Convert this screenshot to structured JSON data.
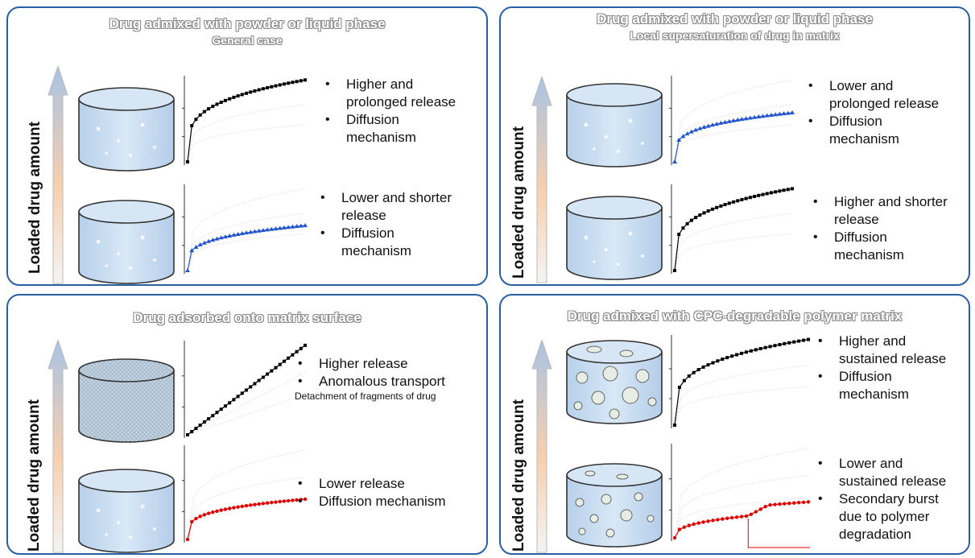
{
  "axis_label": "Loaded drug amount",
  "panels": {
    "top_left": {
      "title": "Drug admixed with powder or liquid phase",
      "subtitle": "General case",
      "upper_notes": [
        "Higher and",
        "prolonged release",
        "Diffusion",
        "mechanism"
      ],
      "lower_notes": [
        "Lower and shorter",
        "release",
        "Diffusion",
        "mechanism"
      ]
    },
    "top_right": {
      "title": "Drug admixed with powder or liquid phase",
      "subtitle": "Local supersaturation of drug in matrix",
      "upper_notes": [
        "Lower and",
        "prolonged release",
        "Diffusion",
        "mechanism"
      ],
      "lower_notes": [
        "Higher and shorter",
        "release",
        "Diffusion",
        "mechanism"
      ]
    },
    "bottom_left": {
      "title": "Drug adsorbed onto matrix surface",
      "upper_notes": [
        "Higher release",
        "Anomalous transport"
      ],
      "upper_detail": "Detachment of fragments of drug",
      "lower_notes": [
        "Lower release",
        "Diffusion mechanism"
      ]
    },
    "bottom_right": {
      "title": "Drug admixed with CPC-degradable polymer matrix",
      "upper_notes": [
        "Higher and",
        "sustained release",
        "Diffusion",
        "mechanism"
      ],
      "lower_notes": [
        "Lower and",
        "sustained release",
        "Secondary burst",
        "due to polymer",
        "degradation"
      ]
    }
  },
  "colors": {
    "panel_border": "#2b5fa3",
    "cylinder": "#c9def2",
    "series_black": "#000000",
    "series_blue": "#2255cc",
    "series_red": "#e00000"
  },
  "chart_data": [
    {
      "type": "scatter",
      "panel": "top_left-upper",
      "series": [
        {
          "color": "#000000",
          "curve": "sqrt",
          "level": 1.0
        }
      ]
    },
    {
      "type": "scatter",
      "panel": "top_left-lower",
      "series": [
        {
          "color": "#2255cc",
          "curve": "sqrt",
          "level": 0.55
        }
      ]
    },
    {
      "type": "scatter",
      "panel": "top_right-upper",
      "series": [
        {
          "color": "#2255cc",
          "curve": "sqrt",
          "level": 0.6
        }
      ]
    },
    {
      "type": "scatter",
      "panel": "top_right-lower",
      "series": [
        {
          "color": "#000000",
          "curve": "sqrt",
          "level": 1.0
        }
      ]
    },
    {
      "type": "scatter",
      "panel": "bottom_left-upper",
      "series": [
        {
          "color": "#000000",
          "curve": "linear",
          "level": 1.0
        }
      ]
    },
    {
      "type": "scatter",
      "panel": "bottom_left-lower",
      "series": [
        {
          "color": "#e00000",
          "curve": "sqrt",
          "level": 0.45
        }
      ]
    },
    {
      "type": "scatter",
      "panel": "bottom_right-upper",
      "series": [
        {
          "color": "#000000",
          "curve": "sqrt",
          "level": 1.0
        }
      ]
    },
    {
      "type": "scatter",
      "panel": "bottom_right-lower",
      "series": [
        {
          "color": "#e00000",
          "curve": "burst",
          "level": 0.55
        }
      ]
    }
  ]
}
